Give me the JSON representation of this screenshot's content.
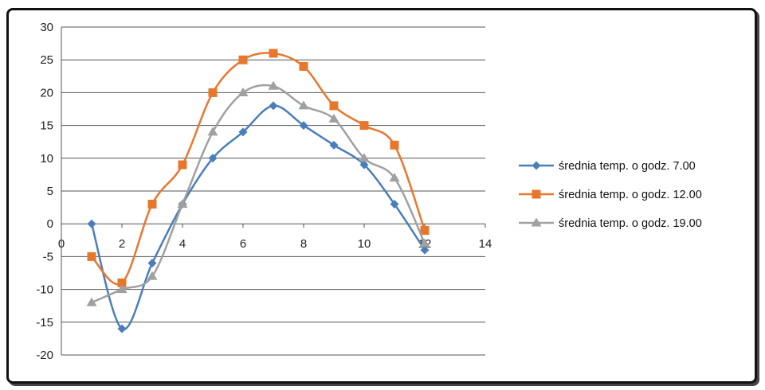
{
  "chart_data": {
    "type": "scatter",
    "title": "",
    "xlabel": "",
    "ylabel": "",
    "xlim": [
      0,
      14
    ],
    "ylim": [
      -20,
      30
    ],
    "x_ticks": [
      0,
      2,
      4,
      6,
      8,
      10,
      12,
      14
    ],
    "y_ticks": [
      30,
      25,
      20,
      15,
      10,
      5,
      0,
      -5,
      -10,
      -15,
      -20
    ],
    "grid": "horizontal",
    "smooth_lines": true,
    "legend_position": "right",
    "series": [
      {
        "name": "średnia temp. o godz. 7.00",
        "color": "#4a7ebb",
        "marker": "diamond",
        "x": [
          1,
          2,
          3,
          4,
          5,
          6,
          7,
          8,
          9,
          10,
          11,
          12
        ],
        "values": [
          0,
          -16,
          -6,
          3,
          10,
          14,
          18,
          15,
          12,
          9,
          3,
          -4
        ]
      },
      {
        "name": "średnia temp. o godz. 12.00",
        "color": "#e8772e",
        "marker": "square",
        "x": [
          1,
          2,
          3,
          4,
          5,
          6,
          7,
          8,
          9,
          10,
          11,
          12
        ],
        "values": [
          -5,
          -9,
          3,
          9,
          20,
          25,
          26,
          24,
          18,
          15,
          12,
          -1
        ]
      },
      {
        "name": "średnia temp. o godz. 19.00",
        "color": "#a0a0a0",
        "marker": "triangle",
        "x": [
          1,
          2,
          3,
          4,
          5,
          6,
          7,
          8,
          9,
          10,
          11,
          12
        ],
        "values": [
          -12,
          -10,
          -8,
          3,
          14,
          20,
          21,
          18,
          16,
          10,
          7,
          -3
        ]
      }
    ]
  }
}
